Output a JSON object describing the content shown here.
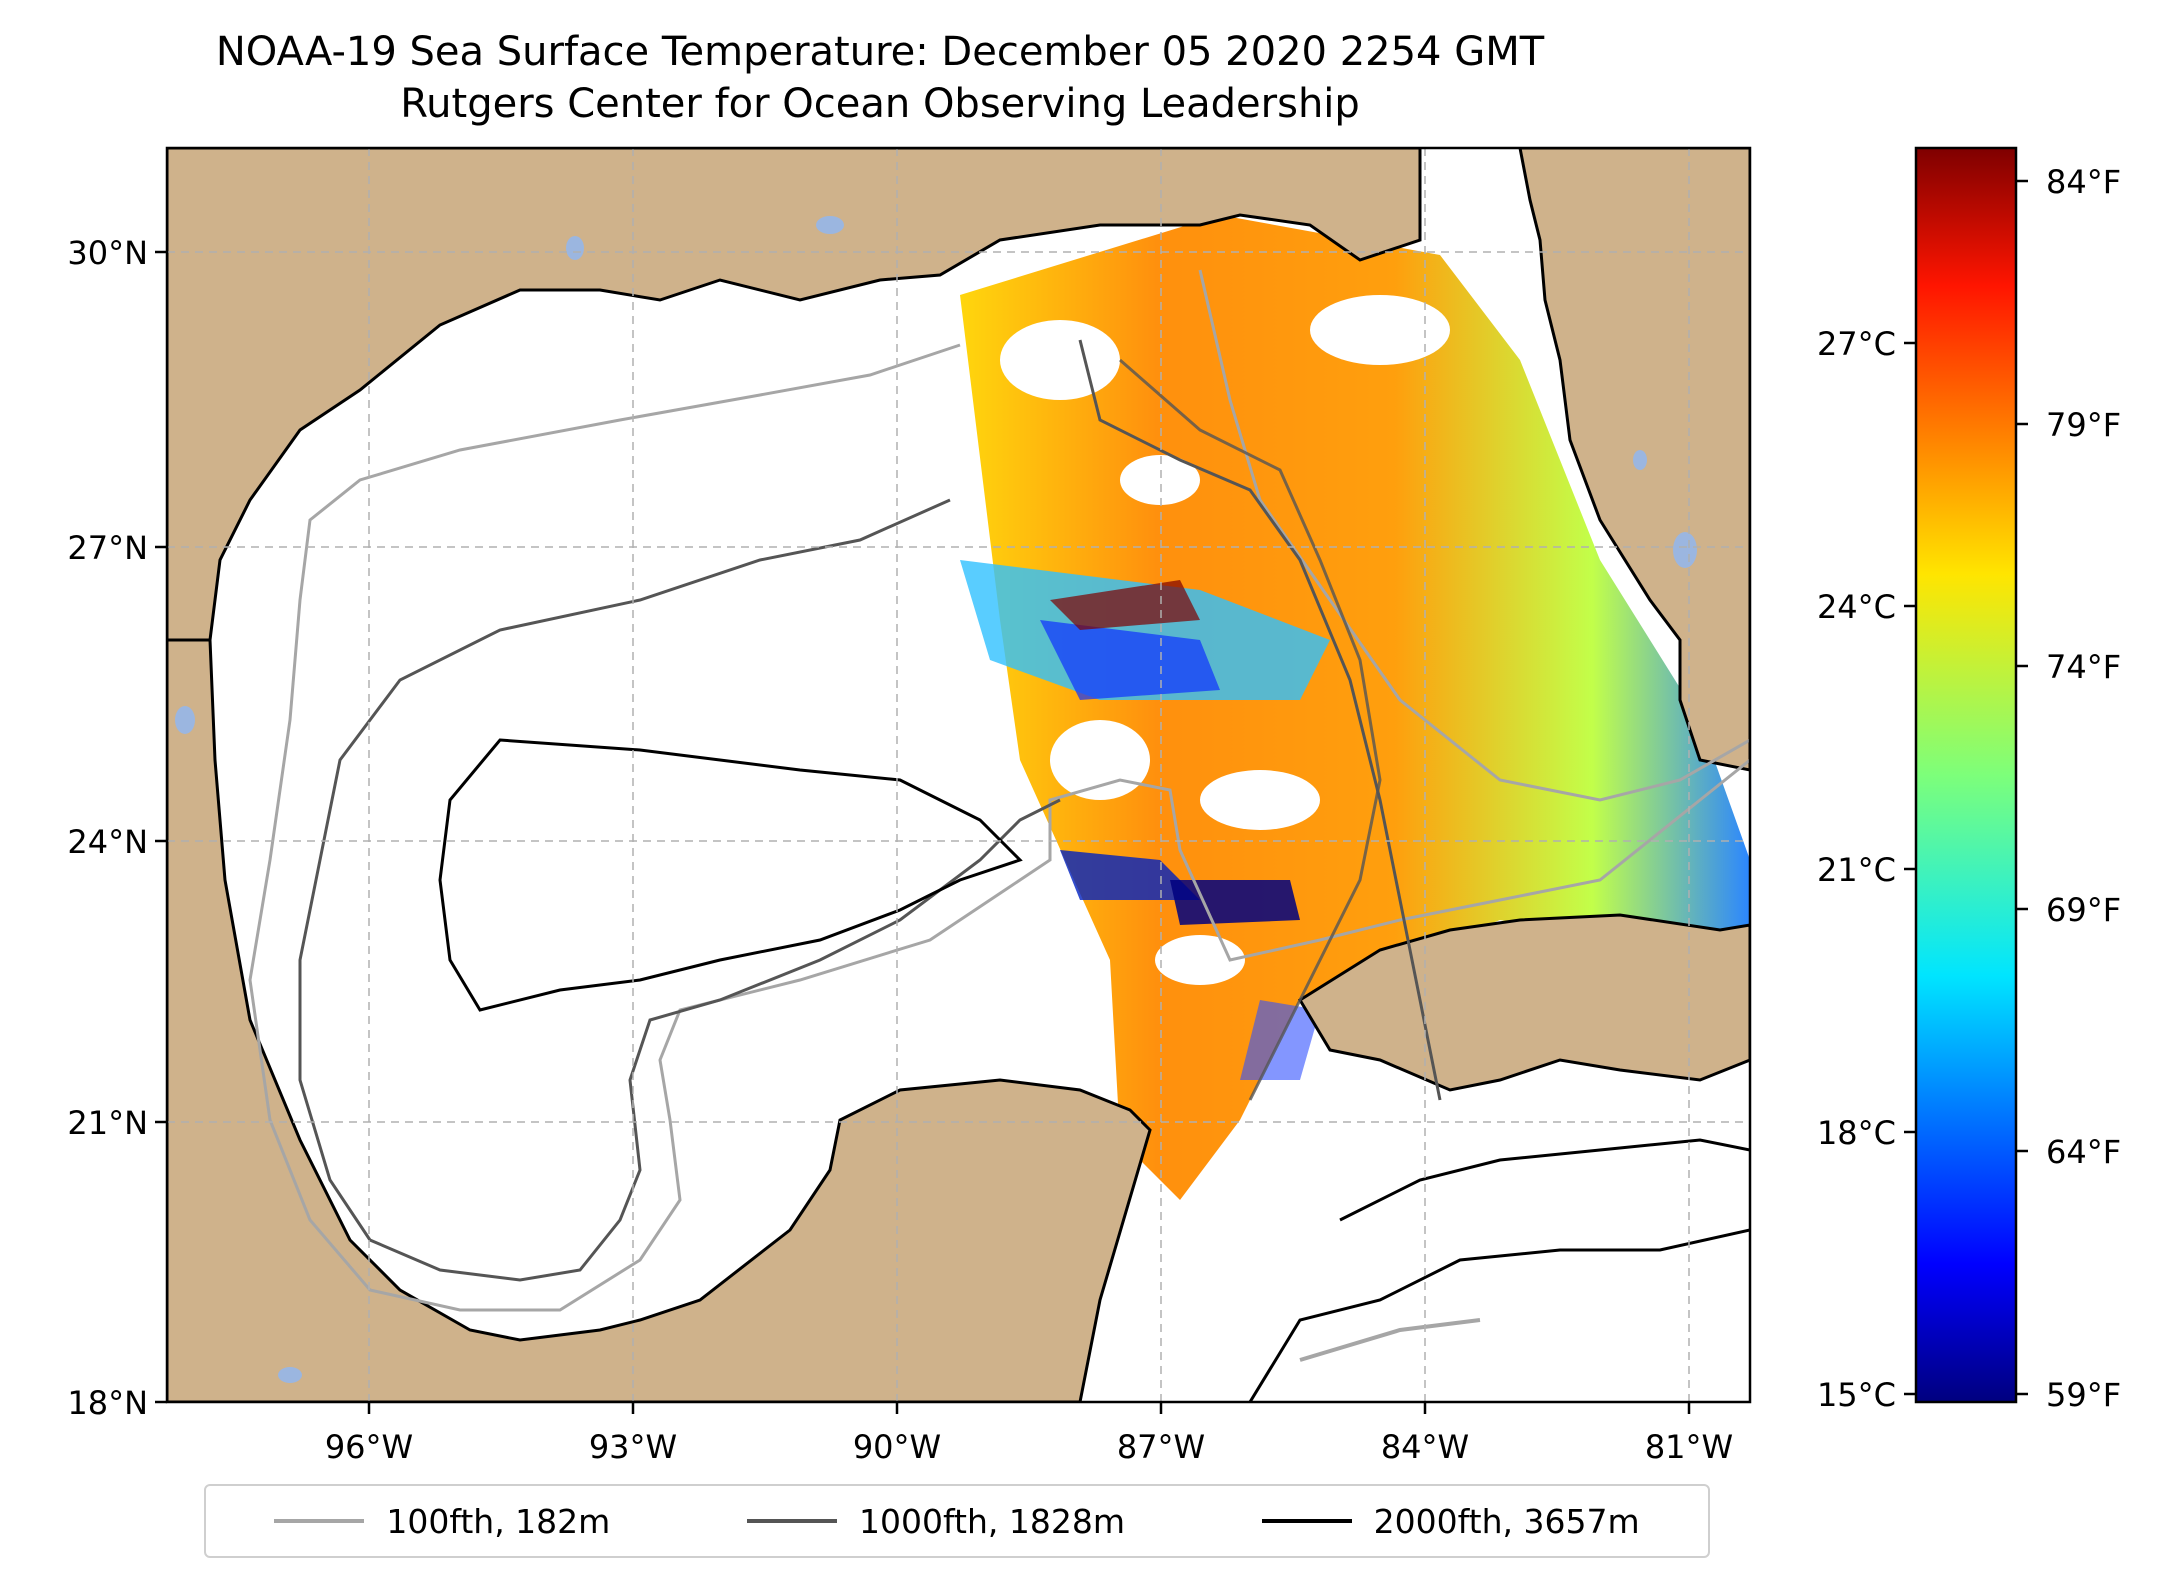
{
  "title": "NOAA-19 Sea Surface Temperature: December 05 2020 2254 GMT",
  "subtitle": "Rutgers Center for Ocean Observing Leadership",
  "map": {
    "lat_ticks": [
      "30°N",
      "27°N",
      "24°N",
      "21°N",
      "18°N"
    ],
    "lon_ticks": [
      "96°W",
      "93°W",
      "90°W",
      "87°W",
      "84°W",
      "81°W"
    ],
    "lat_range": [
      18,
      31
    ],
    "lon_range": [
      -98.3,
      -80.5
    ],
    "gridlines": true,
    "colors": {
      "land": "#cfb28b",
      "lakes": "#9bb6e0",
      "ocean_no_data": "#ffffff"
    }
  },
  "colorbar": {
    "celsius_ticks": [
      "27°C",
      "24°C",
      "21°C",
      "18°C",
      "15°C"
    ],
    "fahrenheit_ticks": [
      "84°F",
      "79°F",
      "74°F",
      "69°F",
      "64°F",
      "59°F"
    ],
    "colormap": "jet",
    "range_f": [
      58.5,
      85.5
    ]
  },
  "legend": [
    {
      "label": "100fth, 182m",
      "color": "#a6a6a6"
    },
    {
      "label": "1000fth, 1828m",
      "color": "#555555"
    },
    {
      "label": "2000fth, 3657m",
      "color": "#000000"
    }
  ]
}
